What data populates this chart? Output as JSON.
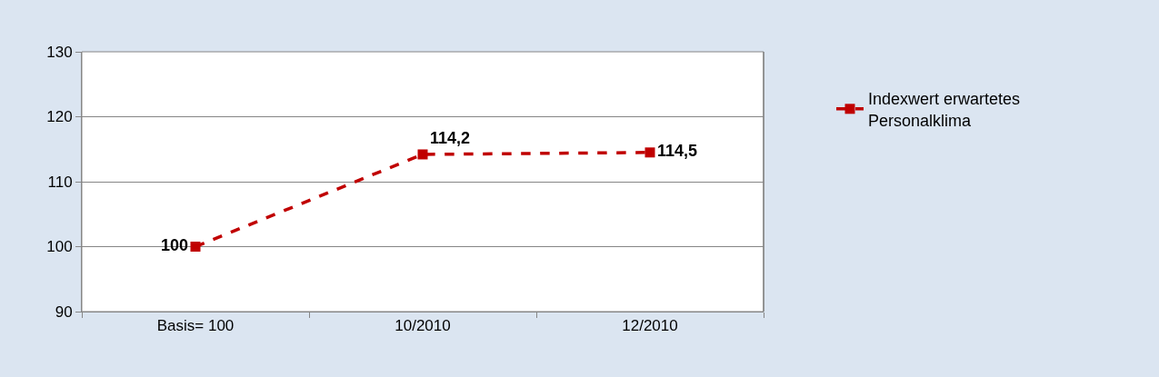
{
  "chart_data": {
    "type": "line",
    "categories": [
      "Basis= 100",
      "10/2010",
      "12/2010"
    ],
    "series": [
      {
        "name": "Indexwert erwartetes Personalklima",
        "color": "#c00000",
        "values": [
          100,
          114.2,
          114.5
        ],
        "value_labels": [
          "100",
          "114,2",
          "114,5"
        ]
      }
    ],
    "ylim": [
      90,
      130
    ],
    "yticks": [
      90,
      100,
      110,
      120,
      130
    ],
    "grid": "y",
    "legend": "right",
    "marker": "square",
    "line_style": "dashed"
  }
}
